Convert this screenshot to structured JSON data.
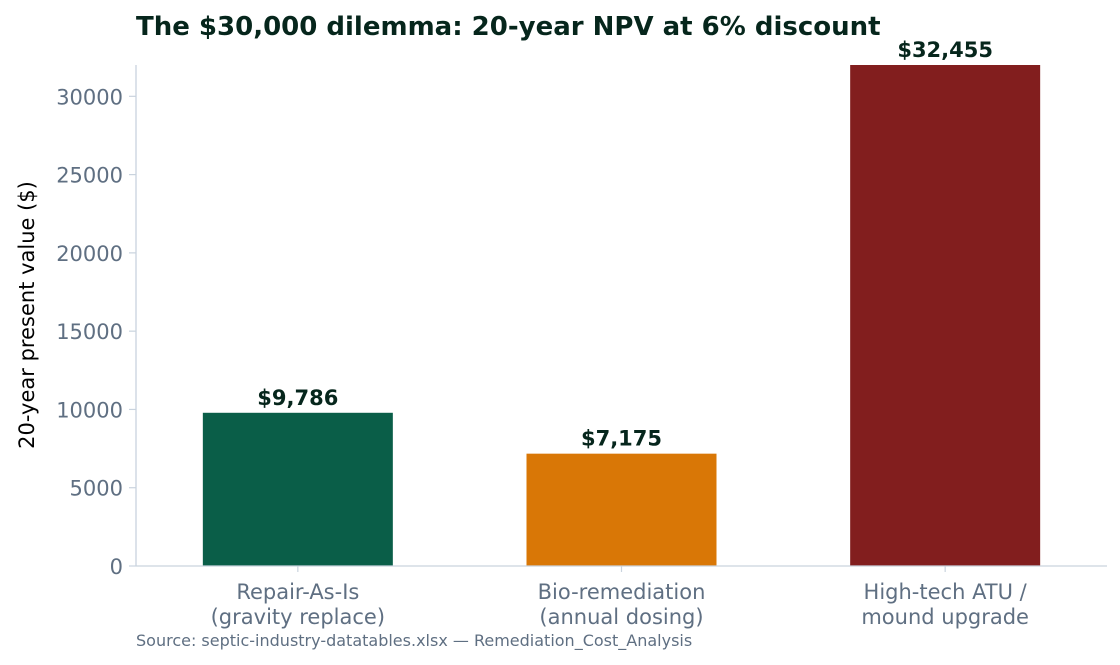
{
  "chart_data": {
    "type": "bar",
    "title": "The $30,000 dilemma: 20-year NPV at 6% discount",
    "ylabel": "20-year present value ($)",
    "xlabel": "",
    "categories": [
      [
        "Repair-As-Is",
        "(gravity replace)"
      ],
      [
        "Bio-remediation",
        "(annual dosing)"
      ],
      [
        "High-tech ATU /",
        "mound upgrade"
      ]
    ],
    "values": [
      9786,
      7175,
      32455
    ],
    "value_labels": [
      "$9,786",
      "$7,175",
      "$32,455"
    ],
    "colors": [
      "#0a5e48",
      "#d97706",
      "#821e1e"
    ],
    "ylim": [
      0,
      32000
    ],
    "yticks": [
      0,
      5000,
      10000,
      15000,
      20000,
      25000,
      30000
    ],
    "ytick_labels": [
      "0",
      "5000",
      "10000",
      "15000",
      "20000",
      "25000",
      "30000"
    ],
    "grid": false,
    "legend": "none"
  },
  "source_note": "Source: septic-industry-datatables.xlsx — Remediation_Cost_Analysis"
}
